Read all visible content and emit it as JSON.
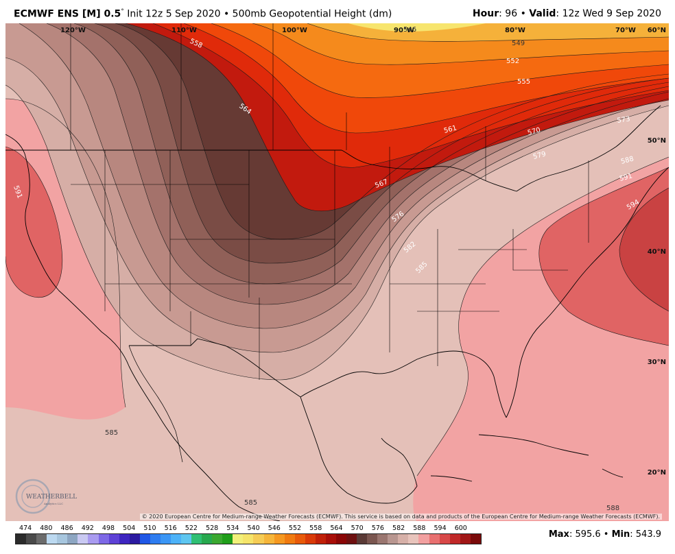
{
  "header": {
    "title_model": "ECMWF ENS [M] 0.5",
    "title_deg": "°",
    "title_rest": " Init 12z 5 Sep 2020 • 500mb Geopotential Height (dm)",
    "hour_label": "Hour",
    "hour_value": ": 96 • ",
    "valid_label": "Valid",
    "valid_value": ": 12z Wed 9 Sep 2020"
  },
  "map": {
    "lon_labels": [
      "120°W",
      "110°W",
      "100°W",
      "90°W",
      "80°W",
      "70°W"
    ],
    "lat_labels": [
      "60°N",
      "50°N",
      "40°N",
      "30°N",
      "20°N"
    ],
    "contour_labels": [
      "546",
      "549",
      "552",
      "555",
      "558",
      "561",
      "564",
      "567",
      "570",
      "573",
      "576",
      "579",
      "582",
      "585",
      "588",
      "591",
      "594",
      "585",
      "585",
      "588",
      "591"
    ],
    "credit": "© 2020 European Centre for Medium-range Weather Forecasts (ECMWF). This service is based on data and products of the European Centre for Medium-range Weather Forecasts (ECMWF).",
    "logo": "WEATHERBELL",
    "logo_sub": "Analytics LLC"
  },
  "colorbar": {
    "labels": [
      "474",
      "480",
      "486",
      "492",
      "498",
      "504",
      "510",
      "516",
      "522",
      "528",
      "534",
      "540",
      "546",
      "552",
      "558",
      "564",
      "570",
      "576",
      "582",
      "588",
      "594",
      "600"
    ],
    "colors": [
      "#2b2b2b",
      "#4a4a4a",
      "#6b6b6b",
      "#bcd9f0",
      "#a7c6de",
      "#8da6c2",
      "#c9c9f2",
      "#a99bf0",
      "#7d68e6",
      "#5d41d6",
      "#3d25c0",
      "#2b1aa0",
      "#1f57e6",
      "#2d7cf0",
      "#3a96f5",
      "#4cb2f8",
      "#5ec6f0",
      "#2fbf74",
      "#27a84e",
      "#3aa830",
      "#1f9e1a",
      "#f2f07a",
      "#f5e46a",
      "#f5cc55",
      "#f5b53a",
      "#f59820",
      "#f07a10",
      "#e85a0a",
      "#d93a08",
      "#c02008",
      "#a80e08",
      "#8a0606",
      "#6e1010",
      "#5a3a36",
      "#7a5650",
      "#9a7670",
      "#b89690",
      "#d6b0a8",
      "#e8c4bc",
      "#f2a0a0",
      "#e87070",
      "#d84848",
      "#c02828",
      "#a01616",
      "#7a0a0a"
    ]
  },
  "stats": {
    "max_label": "Max",
    "max_value": ": 595.6 • ",
    "min_label": "Min",
    "min_value": ": 543.9"
  }
}
